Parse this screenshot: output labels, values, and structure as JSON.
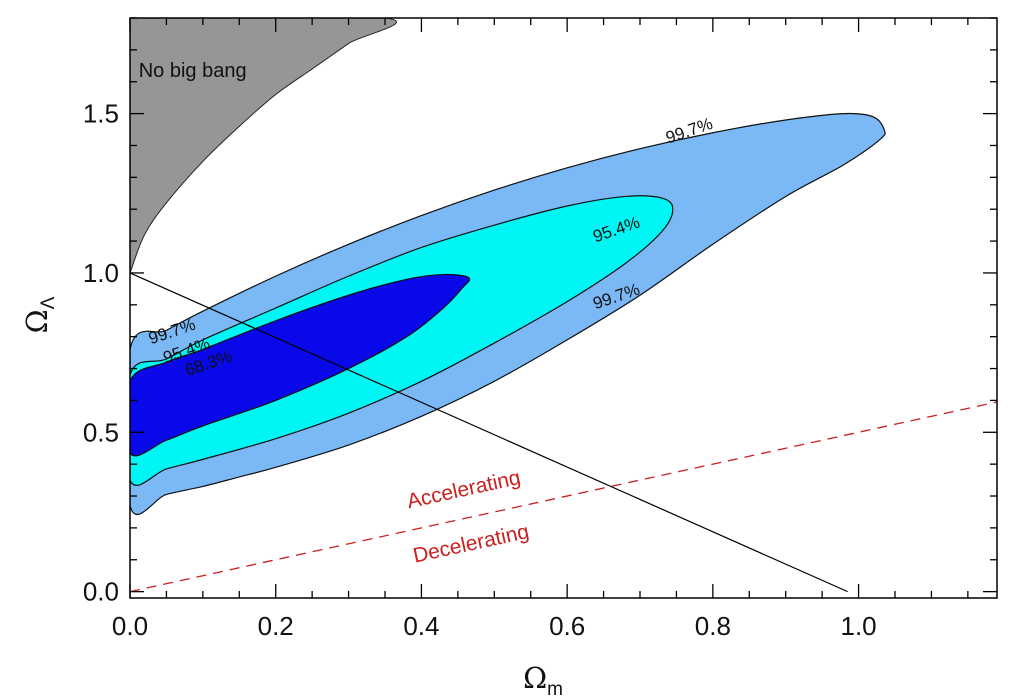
{
  "chart_data": {
    "type": "contour",
    "xlabel": {
      "symbol": "Ω",
      "subscript": "m"
    },
    "ylabel": {
      "symbol": "Ω",
      "subscript": "Λ"
    },
    "xlim": [
      0.0,
      1.19
    ],
    "ylim": [
      -0.02,
      1.8
    ],
    "x_ticks": [
      "0.0",
      "0.2",
      "0.4",
      "0.6",
      "0.8",
      "1.0"
    ],
    "x_tick_values": [
      0.0,
      0.2,
      0.4,
      0.6,
      0.8,
      1.0
    ],
    "y_ticks": [
      "0.0",
      "0.5",
      "1.0",
      "1.5"
    ],
    "y_tick_values": [
      0.0,
      0.5,
      1.0,
      1.5
    ],
    "x_minor_step": 0.05,
    "y_minor_step": 0.1,
    "grid": false,
    "confidence_regions": [
      {
        "level": "99.7%",
        "color": "#7ab9f5",
        "boundary": [
          [
            0.0,
            0.27
          ],
          [
            0.05,
            0.305
          ],
          [
            0.1,
            0.33
          ],
          [
            0.15,
            0.36
          ],
          [
            0.2,
            0.39
          ],
          [
            0.3,
            0.46
          ],
          [
            0.4,
            0.55
          ],
          [
            0.5,
            0.66
          ],
          [
            0.6,
            0.79
          ],
          [
            0.7,
            0.93
          ],
          [
            0.8,
            1.09
          ],
          [
            0.9,
            1.24
          ],
          [
            0.98,
            1.34
          ],
          [
            1.03,
            1.42
          ],
          [
            1.035,
            1.45
          ],
          [
            1.02,
            1.49
          ],
          [
            0.98,
            1.5
          ],
          [
            0.9,
            1.48
          ],
          [
            0.8,
            1.44
          ],
          [
            0.7,
            1.39
          ],
          [
            0.6,
            1.33
          ],
          [
            0.5,
            1.26
          ],
          [
            0.4,
            1.18
          ],
          [
            0.3,
            1.09
          ],
          [
            0.2,
            0.99
          ],
          [
            0.1,
            0.88
          ],
          [
            0.05,
            0.82
          ],
          [
            0.0,
            0.76
          ]
        ]
      },
      {
        "level": "95.4%",
        "color": "#00f5f5",
        "boundary": [
          [
            0.0,
            0.35
          ],
          [
            0.05,
            0.385
          ],
          [
            0.1,
            0.415
          ],
          [
            0.2,
            0.48
          ],
          [
            0.3,
            0.56
          ],
          [
            0.4,
            0.66
          ],
          [
            0.5,
            0.78
          ],
          [
            0.6,
            0.91
          ],
          [
            0.68,
            1.03
          ],
          [
            0.73,
            1.13
          ],
          [
            0.745,
            1.2
          ],
          [
            0.73,
            1.235
          ],
          [
            0.68,
            1.24
          ],
          [
            0.6,
            1.21
          ],
          [
            0.5,
            1.15
          ],
          [
            0.4,
            1.08
          ],
          [
            0.3,
            0.99
          ],
          [
            0.2,
            0.89
          ],
          [
            0.1,
            0.79
          ],
          [
            0.05,
            0.73
          ],
          [
            0.0,
            0.68
          ]
        ]
      },
      {
        "level": "68.3%",
        "color": "#0808e8",
        "boundary": [
          [
            0.0,
            0.435
          ],
          [
            0.05,
            0.475
          ],
          [
            0.1,
            0.52
          ],
          [
            0.2,
            0.6
          ],
          [
            0.3,
            0.7
          ],
          [
            0.38,
            0.8
          ],
          [
            0.43,
            0.89
          ],
          [
            0.455,
            0.95
          ],
          [
            0.465,
            0.985
          ],
          [
            0.43,
            0.995
          ],
          [
            0.38,
            0.98
          ],
          [
            0.3,
            0.93
          ],
          [
            0.2,
            0.85
          ],
          [
            0.1,
            0.76
          ],
          [
            0.05,
            0.72
          ],
          [
            0.0,
            0.66
          ]
        ]
      }
    ],
    "contour_labels": [
      {
        "text": "99.7%",
        "x": 0.77,
        "y": 1.43
      },
      {
        "text": "95.4%",
        "x": 0.67,
        "y": 1.12
      },
      {
        "text": "99.7%",
        "x": 0.67,
        "y": 0.91
      },
      {
        "text": "99.7%",
        "x": 0.06,
        "y": 0.8
      },
      {
        "text": "95.4%",
        "x": 0.08,
        "y": 0.74
      },
      {
        "text": "68.3%",
        "x": 0.11,
        "y": 0.7
      }
    ],
    "no_big_bang_region": {
      "label": "No big bang",
      "color": "#969696",
      "boundary": [
        [
          0.0,
          1.0
        ],
        [
          0.0,
          1.8
        ],
        [
          0.35,
          1.8
        ],
        [
          0.3,
          1.72
        ],
        [
          0.25,
          1.64
        ],
        [
          0.2,
          1.56
        ],
        [
          0.15,
          1.46
        ],
        [
          0.1,
          1.35
        ],
        [
          0.05,
          1.22
        ],
        [
          0.02,
          1.12
        ],
        [
          0.0,
          1.0
        ]
      ]
    },
    "flat_universe_line": {
      "points": [
        [
          0.0,
          1.0
        ],
        [
          0.985,
          0.0
        ]
      ],
      "color": "#000000"
    },
    "acceleration_line": {
      "points": [
        [
          0.0,
          0.0
        ],
        [
          1.19,
          0.595
        ]
      ],
      "color": "#cc1f1f",
      "style": "dashed",
      "labels": [
        {
          "text": "Accelerating",
          "x": 0.46,
          "y": 0.3
        },
        {
          "text": "Decelerating",
          "x": 0.47,
          "y": 0.13
        }
      ]
    }
  }
}
